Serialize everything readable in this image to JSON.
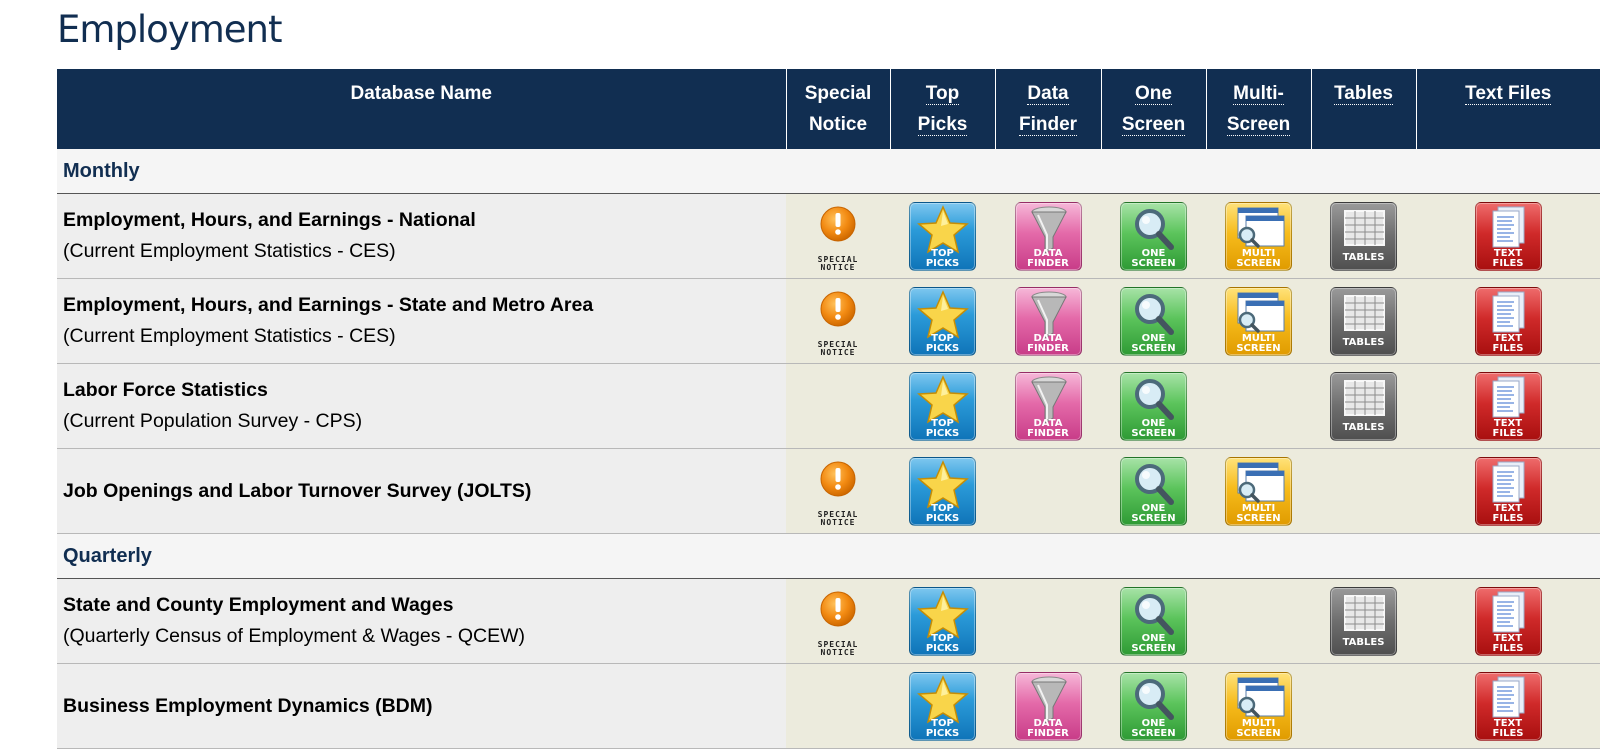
{
  "page": {
    "title": "Employment"
  },
  "table": {
    "headers": {
      "database_name": "Database Name",
      "special_notice": [
        "Special",
        "Notice"
      ],
      "top_picks": [
        "Top",
        "Picks"
      ],
      "data_finder": [
        "Data",
        "Finder"
      ],
      "one_screen": [
        "One",
        "Screen"
      ],
      "multi_screen": [
        "Multi-",
        "Screen"
      ],
      "tables": "Tables",
      "text_files": "Text Files"
    },
    "icon_labels": {
      "special_notice": "SPECIAL\nNOTICE",
      "top_picks": "TOP\nPICKS",
      "data_finder": "DATA\nFINDER",
      "one_screen": "ONE\nSCREEN",
      "multi_screen": "MULTI\nSCREEN",
      "tables": "TABLES",
      "text_files": "TEXT\nFILES"
    },
    "icon_names": {
      "special_notice": "exclamation-icon",
      "top_picks": "star-icon",
      "data_finder": "funnel-icon",
      "one_screen": "magnifier-icon",
      "multi_screen": "windows-magnifier-icon",
      "tables": "grid-icon",
      "text_files": "document-icon"
    },
    "colors": {
      "header_bg": "#112e51",
      "section_text": "#112e51",
      "special_notice": "#f08a0c",
      "top_picks": "#1b86cc",
      "data_finder": "#dc5fa1",
      "one_screen": "#46b34a",
      "multi_screen": "#f2b10b",
      "tables": "#626262",
      "text_files": "#c81c1c"
    },
    "sections": [
      {
        "label": "Monthly",
        "rows": [
          {
            "name": "Employment, Hours, and Earnings - National",
            "sub": "(Current Employment Statistics - CES)",
            "tools": {
              "special_notice": true,
              "top_picks": true,
              "data_finder": true,
              "one_screen": true,
              "multi_screen": true,
              "tables": true,
              "text_files": true
            }
          },
          {
            "name": "Employment, Hours, and Earnings - State and Metro Area",
            "sub": "(Current Employment Statistics - CES)",
            "tools": {
              "special_notice": true,
              "top_picks": true,
              "data_finder": true,
              "one_screen": true,
              "multi_screen": true,
              "tables": true,
              "text_files": true
            }
          },
          {
            "name": "Labor Force Statistics",
            "sub": "(Current Population Survey - CPS)",
            "tools": {
              "special_notice": false,
              "top_picks": true,
              "data_finder": true,
              "one_screen": true,
              "multi_screen": false,
              "tables": true,
              "text_files": true
            }
          },
          {
            "name": "Job Openings and Labor Turnover Survey (JOLTS)",
            "sub": "",
            "tools": {
              "special_notice": true,
              "top_picks": true,
              "data_finder": false,
              "one_screen": true,
              "multi_screen": true,
              "tables": false,
              "text_files": true
            }
          }
        ]
      },
      {
        "label": "Quarterly",
        "rows": [
          {
            "name": "State and County Employment and Wages",
            "sub": "(Quarterly Census of Employment & Wages - QCEW)",
            "tools": {
              "special_notice": true,
              "top_picks": true,
              "data_finder": false,
              "one_screen": true,
              "multi_screen": false,
              "tables": true,
              "text_files": true
            }
          },
          {
            "name": "Business Employment Dynamics (BDM)",
            "sub": "",
            "tools": {
              "special_notice": false,
              "top_picks": true,
              "data_finder": true,
              "one_screen": true,
              "multi_screen": true,
              "tables": false,
              "text_files": true
            }
          }
        ]
      }
    ]
  }
}
